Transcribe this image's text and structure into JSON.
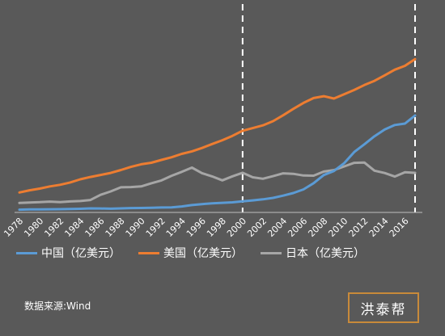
{
  "chart_data": {
    "type": "line",
    "x": [
      1978,
      1979,
      1980,
      1981,
      1982,
      1983,
      1984,
      1985,
      1986,
      1987,
      1988,
      1989,
      1990,
      1991,
      1992,
      1993,
      1994,
      1995,
      1996,
      1997,
      1998,
      1999,
      2000,
      2001,
      2002,
      2003,
      2004,
      2005,
      2006,
      2007,
      2008,
      2009,
      2010,
      2011,
      2012,
      2013,
      2014,
      2015,
      2016,
      2017
    ],
    "x_tick_labels": [
      "1978",
      "1980",
      "1982",
      "1984",
      "1986",
      "1988",
      "1990",
      "1992",
      "1994",
      "1996",
      "1998",
      "2000",
      "2002",
      "2004",
      "2006",
      "2008",
      "2010",
      "2012",
      "2014",
      "2016"
    ],
    "ylim": [
      0,
      250000
    ],
    "grid": false,
    "legend_position": "bottom",
    "series": [
      {
        "name": "中国（亿美元）",
        "color": "#5b9bd5",
        "values": [
          1495,
          1783,
          1911,
          1958,
          2050,
          2303,
          2599,
          3094,
          3008,
          2729,
          3124,
          3477,
          3609,
          3834,
          4269,
          4447,
          5643,
          7340,
          8637,
          9616,
          10294,
          10940,
          12113,
          13394,
          14705,
          16602,
          19553,
          22860,
          27521,
          35500,
          45982,
          51100,
          61002,
          75515,
          85322,
          95704,
          104385,
          110155,
          111991,
          122377
        ]
      },
      {
        "name": "美国（亿美元）",
        "color": "#ed7d31",
        "values": [
          23516,
          26322,
          28573,
          31331,
          33450,
          36384,
          40406,
          43470,
          46012,
          48621,
          52367,
          56414,
          59796,
          61740,
          65393,
          68787,
          73087,
          76399,
          80730,
          85775,
          90627,
          96310,
          102848,
          106219,
          109775,
          115106,
          122749,
          130937,
          138559,
          144776,
          147186,
          144187,
          149644,
          155179,
          161553,
          166915,
          173931,
          181206,
          186245,
          194854
        ]
      },
      {
        "name": "日本（亿美元）",
        "color": "#a6a6a6",
        "values": [
          10096,
          10687,
          11050,
          11810,
          11151,
          11990,
          12545,
          13857,
          20514,
          24855,
          30171,
          30546,
          31329,
          35349,
          38973,
          45019,
          49987,
          55456,
          48338,
          44148,
          39149,
          44327,
          48875,
          43035,
          41154,
          44456,
          48151,
          47554,
          45303,
          45153,
          50379,
          52311,
          57001,
          61575,
          62032,
          51557,
          48504,
          43950,
          49474,
          48721
        ]
      }
    ],
    "reference_lines": [
      2000,
      2017
    ]
  },
  "legend": {
    "china": "中国（亿美元）",
    "usa": "美国（亿美元）",
    "japan": "日本（亿美元）"
  },
  "source_text": "数据来源:Wind",
  "brand_text": "洪泰帮"
}
